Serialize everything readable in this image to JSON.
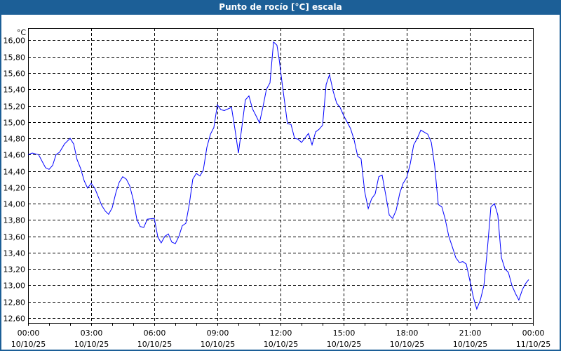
{
  "window": {
    "title": "Punto de rocío [°C] escala"
  },
  "chart_data": {
    "type": "line",
    "title": "Punto de rocío [°C] escala",
    "ylabel": "°C",
    "xlabel": "",
    "ylim": [
      12.54,
      16.15
    ],
    "xlim_hours": [
      0,
      24
    ],
    "grid": true,
    "y_ticks": [
      "12,60",
      "12,80",
      "13,00",
      "13,20",
      "13,40",
      "13,60",
      "13,80",
      "14,00",
      "14,20",
      "14,40",
      "14,60",
      "14,80",
      "15,00",
      "15,20",
      "15,40",
      "15,60",
      "15,80",
      "16,00"
    ],
    "x_ticks": [
      {
        "time": "00:00",
        "date": "10/10/25"
      },
      {
        "time": "03:00",
        "date": "10/10/25"
      },
      {
        "time": "06:00",
        "date": "10/10/25"
      },
      {
        "time": "09:00",
        "date": "10/10/25"
      },
      {
        "time": "12:00",
        "date": "10/10/25"
      },
      {
        "time": "15:00",
        "date": "10/10/25"
      },
      {
        "time": "18:00",
        "date": "10/10/25"
      },
      {
        "time": "21:00",
        "date": "10/10/25"
      },
      {
        "time": "00:00",
        "date": "11/10/25"
      }
    ],
    "series": [
      {
        "name": "Punto de rocío",
        "color": "#0000ff",
        "points": [
          [
            0,
            14.6
          ],
          [
            0.2,
            14.62
          ],
          [
            0.5,
            14.6
          ],
          [
            0.83,
            14.44
          ],
          [
            1.0,
            14.42
          ],
          [
            1.17,
            14.47
          ],
          [
            1.33,
            14.6
          ],
          [
            1.5,
            14.63
          ],
          [
            1.73,
            14.73
          ],
          [
            2.0,
            14.8
          ],
          [
            2.17,
            14.73
          ],
          [
            2.33,
            14.54
          ],
          [
            2.5,
            14.43
          ],
          [
            2.67,
            14.28
          ],
          [
            2.83,
            14.19
          ],
          [
            3.0,
            14.25
          ],
          [
            3.17,
            14.19
          ],
          [
            3.33,
            14.09
          ],
          [
            3.5,
            13.98
          ],
          [
            3.67,
            13.91
          ],
          [
            3.83,
            13.87
          ],
          [
            4.0,
            13.95
          ],
          [
            4.17,
            14.13
          ],
          [
            4.33,
            14.26
          ],
          [
            4.5,
            14.33
          ],
          [
            4.67,
            14.3
          ],
          [
            4.83,
            14.22
          ],
          [
            5.0,
            14.05
          ],
          [
            5.17,
            13.81
          ],
          [
            5.33,
            13.72
          ],
          [
            5.5,
            13.71
          ],
          [
            5.67,
            13.81
          ],
          [
            6.0,
            13.82
          ],
          [
            6.17,
            13.59
          ],
          [
            6.33,
            13.52
          ],
          [
            6.5,
            13.6
          ],
          [
            6.67,
            13.63
          ],
          [
            6.83,
            13.53
          ],
          [
            7.0,
            13.51
          ],
          [
            7.17,
            13.6
          ],
          [
            7.33,
            13.73
          ],
          [
            7.5,
            13.76
          ],
          [
            7.67,
            14.0
          ],
          [
            7.83,
            14.3
          ],
          [
            8.0,
            14.37
          ],
          [
            8.17,
            14.34
          ],
          [
            8.33,
            14.41
          ],
          [
            8.5,
            14.69
          ],
          [
            8.67,
            14.85
          ],
          [
            8.83,
            14.93
          ],
          [
            9.0,
            15.21
          ],
          [
            9.17,
            15.15
          ],
          [
            9.33,
            15.14
          ],
          [
            9.67,
            15.18
          ],
          [
            9.83,
            14.92
          ],
          [
            10.0,
            14.62
          ],
          [
            10.17,
            14.95
          ],
          [
            10.33,
            15.27
          ],
          [
            10.5,
            15.32
          ],
          [
            10.67,
            15.16
          ],
          [
            10.83,
            15.08
          ],
          [
            11.0,
            14.99
          ],
          [
            11.17,
            15.19
          ],
          [
            11.33,
            15.4
          ],
          [
            11.5,
            15.48
          ],
          [
            11.67,
            15.98
          ],
          [
            11.83,
            15.94
          ],
          [
            11.93,
            15.78
          ],
          [
            12.07,
            15.49
          ],
          [
            12.23,
            15.18
          ],
          [
            12.33,
            14.98
          ],
          [
            12.5,
            14.97
          ],
          [
            12.67,
            14.8
          ],
          [
            12.83,
            14.79
          ],
          [
            13.0,
            14.75
          ],
          [
            13.33,
            14.86
          ],
          [
            13.5,
            14.72
          ],
          [
            13.67,
            14.88
          ],
          [
            13.83,
            14.91
          ],
          [
            14.0,
            14.96
          ],
          [
            14.17,
            15.46
          ],
          [
            14.33,
            15.58
          ],
          [
            14.5,
            15.38
          ],
          [
            14.67,
            15.23
          ],
          [
            14.83,
            15.18
          ],
          [
            15.0,
            15.08
          ],
          [
            15.33,
            14.92
          ],
          [
            15.5,
            14.78
          ],
          [
            15.67,
            14.58
          ],
          [
            15.83,
            14.55
          ],
          [
            16.0,
            14.15
          ],
          [
            16.17,
            13.94
          ],
          [
            16.33,
            14.06
          ],
          [
            16.5,
            14.12
          ],
          [
            16.67,
            14.33
          ],
          [
            16.83,
            14.35
          ],
          [
            17.0,
            14.11
          ],
          [
            17.17,
            13.86
          ],
          [
            17.33,
            13.82
          ],
          [
            17.5,
            13.92
          ],
          [
            17.67,
            14.13
          ],
          [
            17.83,
            14.25
          ],
          [
            18.0,
            14.32
          ],
          [
            18.17,
            14.49
          ],
          [
            18.33,
            14.72
          ],
          [
            18.5,
            14.8
          ],
          [
            18.67,
            14.9
          ],
          [
            19.0,
            14.85
          ],
          [
            19.17,
            14.75
          ],
          [
            19.33,
            14.46
          ],
          [
            19.5,
            13.99
          ],
          [
            19.67,
            13.96
          ],
          [
            19.83,
            13.81
          ],
          [
            20.0,
            13.6
          ],
          [
            20.17,
            13.47
          ],
          [
            20.33,
            13.34
          ],
          [
            20.5,
            13.28
          ],
          [
            20.67,
            13.29
          ],
          [
            20.83,
            13.26
          ],
          [
            21.0,
            13.06
          ],
          [
            21.17,
            12.85
          ],
          [
            21.33,
            12.71
          ],
          [
            21.5,
            12.82
          ],
          [
            21.67,
            13.0
          ],
          [
            21.83,
            13.43
          ],
          [
            22.0,
            13.96
          ],
          [
            22.17,
            14.0
          ],
          [
            22.33,
            13.86
          ],
          [
            22.5,
            13.34
          ],
          [
            22.67,
            13.2
          ],
          [
            22.83,
            13.16
          ],
          [
            23.0,
            13.0
          ],
          [
            23.17,
            12.9
          ],
          [
            23.33,
            12.82
          ],
          [
            23.5,
            12.95
          ],
          [
            23.67,
            13.03
          ],
          [
            23.8,
            13.07
          ]
        ]
      }
    ]
  }
}
